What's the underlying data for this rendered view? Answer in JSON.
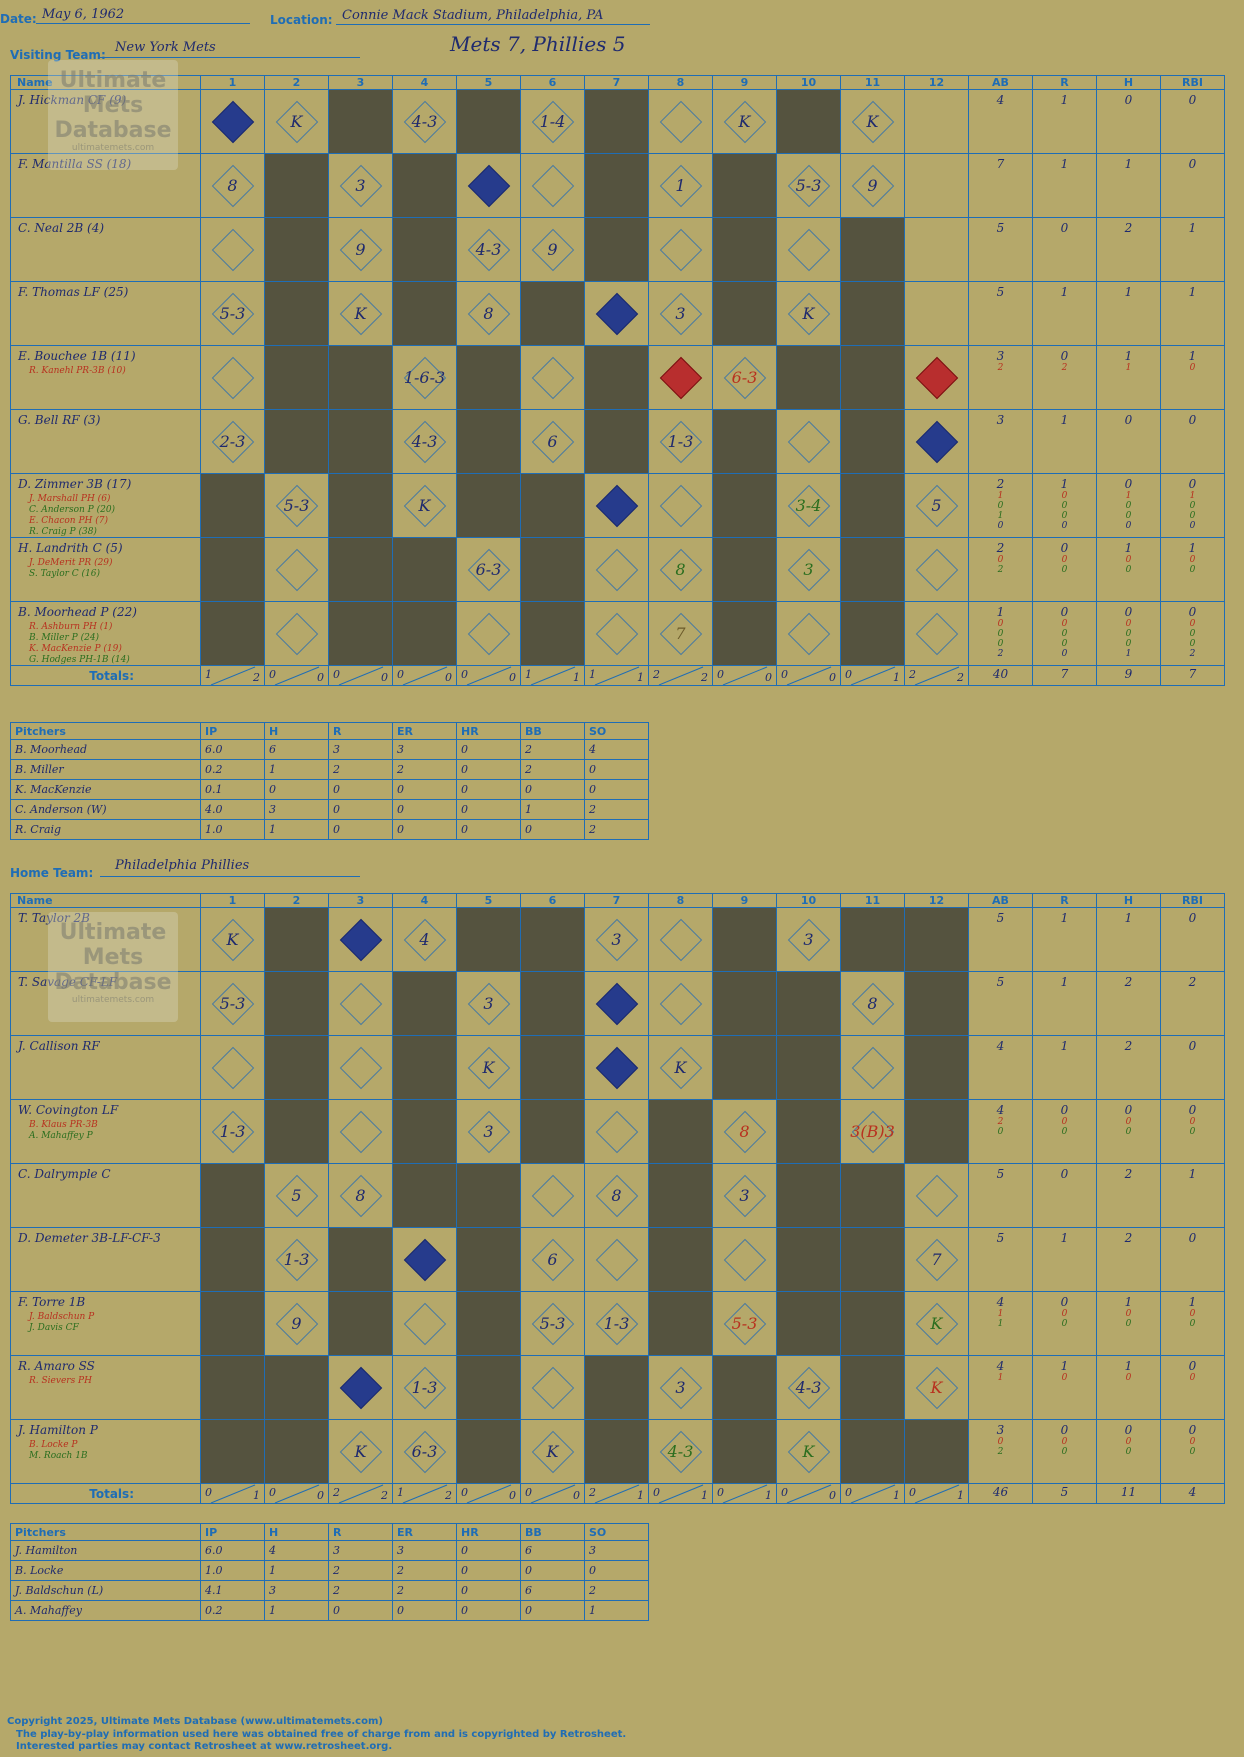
{
  "header": {
    "date_label": "Date:",
    "date": "May 6, 1962",
    "location_label": "Location:",
    "location": "Connie Mack Stadium, Philadelphia, PA",
    "title": "Mets 7, Phillies 5"
  },
  "visiting": {
    "team_label": "Visiting Team:",
    "team": "New York Mets",
    "columns": [
      "Name",
      "1",
      "2",
      "3",
      "4",
      "5",
      "6",
      "7",
      "8",
      "9",
      "10",
      "11",
      "12",
      "AB",
      "R",
      "H",
      "RBI"
    ],
    "batters": [
      {
        "name": "J. Hickman CF (9)",
        "subs": [],
        "stats": [
          [
            "4"
          ],
          [
            "1"
          ],
          [
            "0"
          ],
          [
            "0"
          ]
        ],
        "cells": [
          "f:",
          "k:K",
          "d:",
          "p:4-3",
          "d:",
          "p:1-4",
          "d:",
          "o:",
          "k:K",
          "d:",
          "k:K",
          "a:"
        ]
      },
      {
        "name": "F. Mantilla SS (18)",
        "subs": [],
        "stats": [
          [
            "7"
          ],
          [
            "1"
          ],
          [
            "1"
          ],
          [
            "0"
          ]
        ],
        "cells": [
          "p:8",
          "d:",
          "p:3",
          "d:",
          "f:",
          "o:",
          "d:",
          "p:1",
          "d:",
          "p:5-3",
          "p:9",
          "a:"
        ]
      },
      {
        "name": "C. Neal 2B (4)",
        "subs": [],
        "stats": [
          [
            "5"
          ],
          [
            "0"
          ],
          [
            "2"
          ],
          [
            "1"
          ]
        ],
        "cells": [
          "o:",
          "d:",
          "p:9",
          "d:",
          "p:4-3",
          "p:9",
          "d:",
          "o:",
          "d:",
          "o:",
          "d:",
          "a:"
        ]
      },
      {
        "name": "F. Thomas LF (25)",
        "subs": [],
        "stats": [
          [
            "5"
          ],
          [
            "1"
          ],
          [
            "1"
          ],
          [
            "1"
          ]
        ],
        "cells": [
          "p:5-3",
          "d:",
          "k:K",
          "d:",
          "p:8",
          "d:",
          "f:",
          "p:3",
          "d:",
          "k:K",
          "d:",
          "a:"
        ]
      },
      {
        "name": "E. Bouchee 1B (11)",
        "subs": [
          "R. Kanehl PR-3B (10)"
        ],
        "stats": [
          [
            "3",
            "2"
          ],
          [
            "0",
            "2"
          ],
          [
            "1",
            "1"
          ],
          [
            "1",
            "0"
          ]
        ],
        "cells": [
          "o:",
          "d:",
          "d:",
          "p:1-6-3",
          "d:",
          "o:",
          "d:",
          "r:",
          "p:6-3",
          "d:",
          "d:",
          "r:"
        ]
      },
      {
        "name": "G. Bell RF (3)",
        "subs": [],
        "stats": [
          [
            "3"
          ],
          [
            "1"
          ],
          [
            "0"
          ],
          [
            "0"
          ]
        ],
        "cells": [
          "p:2-3",
          "d:",
          "d:",
          "p:4-3",
          "d:",
          "p:6",
          "d:",
          "p:1-3",
          "d:",
          "o:",
          "d:",
          "f:"
        ]
      },
      {
        "name": "D. Zimmer 3B (17)",
        "subs": [
          "J. Marshall PH (6)",
          "C. Anderson P (20)",
          "E. Chacon PH (7)",
          "R. Craig P (38)"
        ],
        "stats": [
          [
            "2",
            "1",
            "0",
            "1",
            "0"
          ],
          [
            "1",
            "0",
            "0",
            "0",
            "0"
          ],
          [
            "0",
            "1",
            "0",
            "0",
            "0"
          ],
          [
            "0",
            "1",
            "0",
            "0",
            "0"
          ]
        ],
        "cells": [
          "d:",
          "p:5-3",
          "d:",
          "k:K",
          "d:",
          "d:",
          "f:",
          "o:",
          "d:",
          "p:3-4",
          "d:",
          "p:5"
        ]
      },
      {
        "name": "H. Landrith C (5)",
        "subs": [
          "J. DeMerit PR (29)",
          "S. Taylor C (16)"
        ],
        "stats": [
          [
            "2",
            "0",
            "2"
          ],
          [
            "0",
            "0",
            "0"
          ],
          [
            "1",
            "0",
            "0"
          ],
          [
            "1",
            "0",
            "0"
          ]
        ],
        "cells": [
          "d:",
          "o:",
          "d:",
          "d:",
          "p:6-3",
          "d:",
          "o:",
          "p:8",
          "d:",
          "p:3",
          "d:",
          "o:"
        ]
      },
      {
        "name": "B. Moorhead P (22)",
        "subs": [
          "R. Ashburn PH (1)",
          "B. Miller P (24)",
          "K. MacKenzie P (19)",
          "G. Hodges PH-1B (14)"
        ],
        "stats": [
          [
            "1",
            "0",
            "0",
            "0",
            "2"
          ],
          [
            "0",
            "0",
            "0",
            "0",
            "0"
          ],
          [
            "0",
            "0",
            "0",
            "0",
            "1"
          ],
          [
            "0",
            "0",
            "0",
            "0",
            "2"
          ]
        ],
        "cells": [
          "d:",
          "o:",
          "d:",
          "d:",
          "o:",
          "d:",
          "o:",
          "p:7",
          "d:",
          "o:",
          "d:",
          "o:"
        ]
      }
    ],
    "totals_label": "Totals:",
    "totals": [
      [
        "1",
        "2"
      ],
      [
        "0",
        "0"
      ],
      [
        "0",
        "0"
      ],
      [
        "0",
        "0"
      ],
      [
        "0",
        "0"
      ],
      [
        "1",
        "1"
      ],
      [
        "1",
        "1"
      ],
      [
        "2",
        "2"
      ],
      [
        "0",
        "0"
      ],
      [
        "0",
        "0"
      ],
      [
        "0",
        "1"
      ],
      [
        "2",
        "2"
      ]
    ],
    "totals_sum": [
      "40",
      "7",
      "9",
      "7"
    ],
    "pitchers_header": [
      "Pitchers",
      "IP",
      "H",
      "R",
      "ER",
      "HR",
      "BB",
      "SO"
    ],
    "pitchers": [
      [
        "B. Moorhead",
        "6.0",
        "6",
        "3",
        "3",
        "0",
        "2",
        "4"
      ],
      [
        "B. Miller",
        "0.2",
        "1",
        "2",
        "2",
        "0",
        "2",
        "0"
      ],
      [
        "K. MacKenzie",
        "0.1",
        "0",
        "0",
        "0",
        "0",
        "0",
        "0"
      ],
      [
        "C. Anderson (W)",
        "4.0",
        "3",
        "0",
        "0",
        "0",
        "1",
        "2"
      ],
      [
        "R. Craig",
        "1.0",
        "1",
        "0",
        "0",
        "0",
        "0",
        "2"
      ]
    ]
  },
  "home": {
    "team_label": "Home Team:",
    "team": "Philadelphia Phillies",
    "columns": [
      "Name",
      "1",
      "2",
      "3",
      "4",
      "5",
      "6",
      "7",
      "8",
      "9",
      "10",
      "11",
      "12",
      "AB",
      "R",
      "H",
      "RBI"
    ],
    "batters": [
      {
        "name": "T. Taylor 2B",
        "subs": [],
        "stats": [
          [
            "5"
          ],
          [
            "1"
          ],
          [
            "1"
          ],
          [
            "0"
          ]
        ],
        "cells": [
          "k:K",
          "d:",
          "f:",
          "p:4",
          "d:",
          "d:",
          "p:3",
          "o:",
          "d:",
          "p:3",
          "d:",
          "d:"
        ]
      },
      {
        "name": "T. Savage CF-LF",
        "subs": [],
        "stats": [
          [
            "5"
          ],
          [
            "1"
          ],
          [
            "2"
          ],
          [
            "2"
          ]
        ],
        "cells": [
          "p:5-3",
          "d:",
          "o:",
          "d:",
          "p:3",
          "d:",
          "f:",
          "o:",
          "d:",
          "d:",
          "p:8",
          "d:"
        ]
      },
      {
        "name": "J. Callison RF",
        "subs": [],
        "stats": [
          [
            "4"
          ],
          [
            "1"
          ],
          [
            "2"
          ],
          [
            "0"
          ]
        ],
        "cells": [
          "o:",
          "d:",
          "o:",
          "d:",
          "k:K",
          "d:",
          "f:",
          "k:K",
          "d:",
          "d:",
          "o:",
          "d:"
        ]
      },
      {
        "name": "W. Covington LF",
        "subs": [
          "B. Klaus PR-3B",
          "A. Mahaffey P"
        ],
        "stats": [
          [
            "4",
            "2",
            "0"
          ],
          [
            "0",
            "0",
            "0"
          ],
          [
            "0",
            "0",
            "0"
          ],
          [
            "0",
            "0",
            "0"
          ]
        ],
        "cells": [
          "p:1-3",
          "d:",
          "o:",
          "d:",
          "p:3",
          "d:",
          "o:",
          "d:",
          "p:8",
          "d:",
          "p:3(B)3",
          "d:"
        ]
      },
      {
        "name": "C. Dalrymple C",
        "subs": [],
        "stats": [
          [
            "5"
          ],
          [
            "0"
          ],
          [
            "2"
          ],
          [
            "1"
          ]
        ],
        "cells": [
          "d:",
          "p:5",
          "p:8",
          "d:",
          "d:",
          "o:",
          "p:8",
          "d:",
          "p:3",
          "d:",
          "d:",
          "o:"
        ]
      },
      {
        "name": "D. Demeter 3B-LF-CF-3",
        "subs": [],
        "stats": [
          [
            "5"
          ],
          [
            "1"
          ],
          [
            "2"
          ],
          [
            "0"
          ]
        ],
        "cells": [
          "d:",
          "p:1-3",
          "d:",
          "f:",
          "d:",
          "p:6",
          "o:",
          "d:",
          "o:",
          "d:",
          "d:",
          "p:7"
        ]
      },
      {
        "name": "F. Torre 1B",
        "subs": [
          "J. Baldschun P",
          "J. Davis CF"
        ],
        "stats": [
          [
            "4",
            "1",
            "1"
          ],
          [
            "0",
            "0",
            "0"
          ],
          [
            "1",
            "0",
            "0"
          ],
          [
            "1",
            "0",
            "0"
          ]
        ],
        "cells": [
          "d:",
          "p:9",
          "d:",
          "o:",
          "d:",
          "p:5-3",
          "p:1-3",
          "d:",
          "p:5-3",
          "d:",
          "d:",
          "k:K"
        ]
      },
      {
        "name": "R. Amaro SS",
        "subs": [
          "R. Sievers PH"
        ],
        "stats": [
          [
            "4",
            "1"
          ],
          [
            "1",
            "0"
          ],
          [
            "1",
            "0"
          ],
          [
            "0",
            "0"
          ]
        ],
        "cells": [
          "d:",
          "d:",
          "f:",
          "p:1-3",
          "d:",
          "o:",
          "d:",
          "p:3",
          "d:",
          "p:4-3",
          "d:",
          "k:K"
        ]
      },
      {
        "name": "J. Hamilton P",
        "subs": [
          "B. Locke P",
          "M. Roach 1B"
        ],
        "stats": [
          [
            "3",
            "0",
            "2"
          ],
          [
            "0",
            "0",
            "0"
          ],
          [
            "0",
            "0",
            "0"
          ],
          [
            "0",
            "0",
            "0"
          ]
        ],
        "cells": [
          "d:",
          "d:",
          "k:K",
          "p:6-3",
          "d:",
          "k:K",
          "d:",
          "p:4-3",
          "d:",
          "k:K",
          "d:",
          "d:"
        ]
      }
    ],
    "totals_label": "Totals:",
    "totals": [
      [
        "0",
        "1"
      ],
      [
        "0",
        "0"
      ],
      [
        "2",
        "2"
      ],
      [
        "1",
        "2"
      ],
      [
        "0",
        "0"
      ],
      [
        "0",
        "0"
      ],
      [
        "2",
        "1"
      ],
      [
        "0",
        "1"
      ],
      [
        "0",
        "1"
      ],
      [
        "0",
        "0"
      ],
      [
        "0",
        "1"
      ],
      [
        "0",
        "1"
      ]
    ],
    "totals_sum": [
      "46",
      "5",
      "11",
      "4"
    ],
    "pitchers_header": [
      "Pitchers",
      "IP",
      "H",
      "R",
      "ER",
      "HR",
      "BB",
      "SO"
    ],
    "pitchers": [
      [
        "J. Hamilton",
        "6.0",
        "4",
        "3",
        "3",
        "0",
        "6",
        "3"
      ],
      [
        "B. Locke",
        "1.0",
        "1",
        "2",
        "2",
        "0",
        "0",
        "0"
      ],
      [
        "J. Baldschun (L)",
        "4.1",
        "3",
        "2",
        "2",
        "0",
        "6",
        "2"
      ],
      [
        "A. Mahaffey",
        "0.2",
        "1",
        "0",
        "0",
        "0",
        "0",
        "1"
      ]
    ]
  },
  "logo": {
    "line1": "Ultimate",
    "line2": "Mets",
    "line3": "Database",
    "url": "ultimatemets.com"
  },
  "footer": {
    "copyright": "Copyright 2025, Ultimate Mets Database (www.ultimatemets.com)",
    "line2": "The play-by-play information used here was obtained free of charge from and is copyrighted by Retrosheet.",
    "line3": "Interested parties may contact Retrosheet at www.retrosheet.org."
  }
}
